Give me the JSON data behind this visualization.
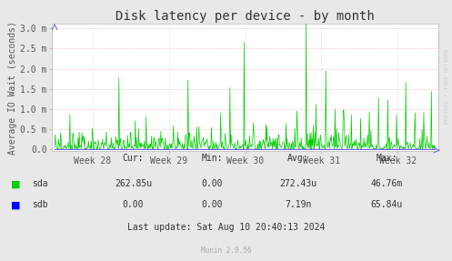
{
  "title": "Disk latency per device - by month",
  "ylabel": "Average IO Wait (seconds)",
  "bg_color": "#E8E8E8",
  "plot_bg_color": "#FFFFFF",
  "red_line_color": "#FF9999",
  "blue_arrow_color": "#7777CC",
  "x_tick_labels": [
    "Week 28",
    "Week 29",
    "Week 30",
    "Week 31",
    "Week 32"
  ],
  "y_tick_labels": [
    "0.0",
    "0.5 m",
    "1.0 m",
    "1.5 m",
    "2.0 m",
    "2.5 m",
    "3.0 m"
  ],
  "y_tick_values": [
    0.0,
    0.0005,
    0.001,
    0.0015,
    0.002,
    0.0025,
    0.003
  ],
  "ylim": [
    0.0,
    0.003
  ],
  "sda_color": "#00CC00",
  "sdb_color": "#0000FF",
  "legend_cur_sda": "262.85u",
  "legend_min_sda": "0.00",
  "legend_avg_sda": "272.43u",
  "legend_max_sda": "46.76m",
  "legend_cur_sdb": "0.00",
  "legend_min_sdb": "0.00",
  "legend_avg_sdb": "7.19n",
  "legend_max_sdb": "65.84u",
  "last_update": "Last update: Sat Aug 10 20:40:13 2024",
  "munin_version": "Munin 2.0.56",
  "rrdtool_text": "RRDTOOL / TOBI OETIKER",
  "title_fontsize": 10,
  "axis_fontsize": 7,
  "legend_fontsize": 7,
  "n_points": 700
}
